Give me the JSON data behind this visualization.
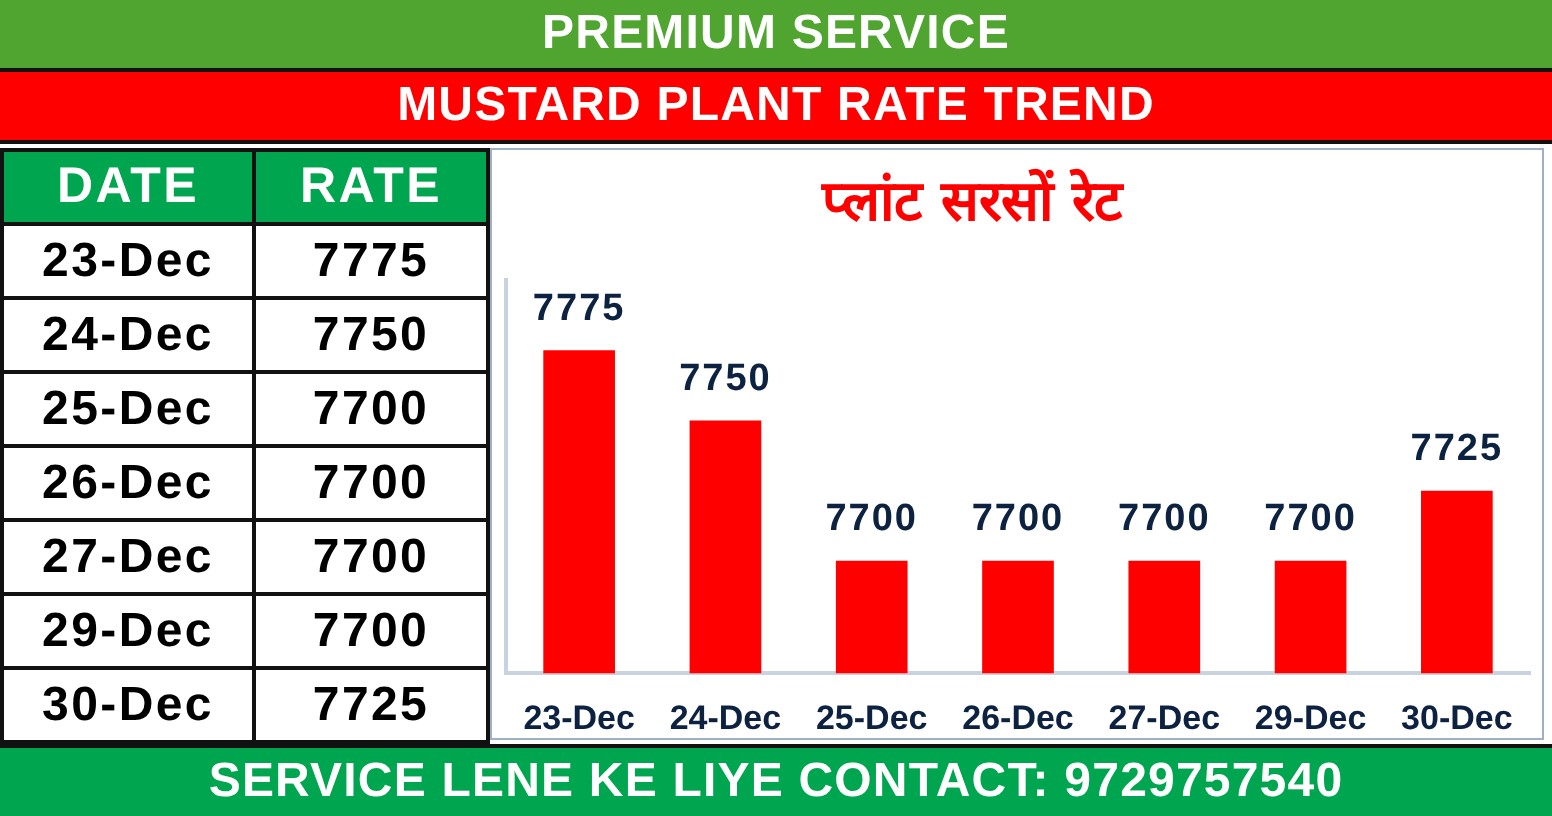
{
  "chart_data": {
    "type": "bar",
    "title": "MUSTARD PLANT RATE TREND",
    "subtitle": "प्लांट सरसों रेट",
    "categories": [
      "23-Dec",
      "24-Dec",
      "25-Dec",
      "26-Dec",
      "27-Dec",
      "29-Dec",
      "30-Dec"
    ],
    "values": [
      7775,
      7750,
      7700,
      7700,
      7700,
      7700,
      7725
    ],
    "color": "#ff0000",
    "value_labels": [
      "7775",
      "7750",
      "7700",
      "7700",
      "7700",
      "7700",
      "7725"
    ],
    "ylim": [
      7660,
      7800
    ],
    "tick_labels": "x",
    "annotations": [
      "PREMIUM SERVICE",
      "DATE",
      "RATE",
      "SERVICE LENE KE LIYE CONTACT: 9729757540"
    ]
  }
}
